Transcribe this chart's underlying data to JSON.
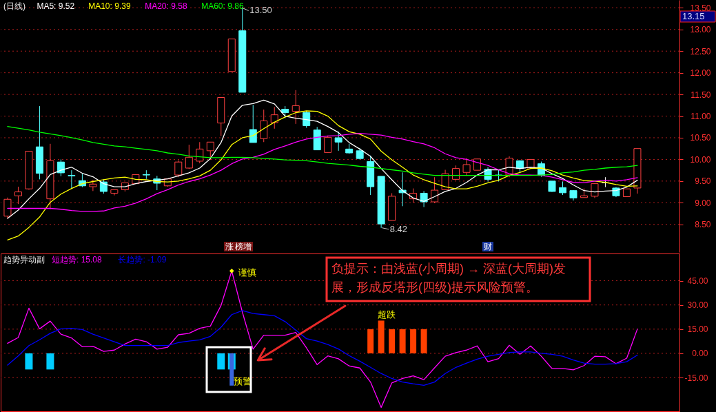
{
  "chart_data": [
    {
      "type": "candlestick",
      "title": "(日线)",
      "legend": "top left",
      "tick_labels": "y",
      "grid": "y",
      "categories": [
        null,
        null,
        null,
        null,
        null,
        null,
        null,
        null,
        null,
        null,
        null,
        null,
        null,
        null,
        null,
        null,
        null,
        null,
        null,
        null,
        null,
        null,
        null,
        null,
        null,
        null,
        null,
        null,
        null,
        null,
        null,
        null,
        null,
        null,
        null,
        null,
        null,
        null,
        null,
        null,
        null,
        null,
        null,
        null,
        null,
        null,
        null,
        null,
        null,
        null,
        null,
        null,
        null,
        null,
        null,
        null,
        null,
        null,
        null,
        null
      ],
      "ohlc": [
        [
          8.69,
          9.12,
          8.63,
          9.08
        ],
        [
          9.16,
          9.37,
          8.97,
          9.25
        ],
        [
          9.32,
          10.19,
          9.3,
          10.19
        ],
        [
          10.29,
          11.23,
          9.54,
          9.68
        ],
        [
          9.09,
          10.36,
          8.85,
          9.97
        ],
        [
          9.94,
          10.0,
          9.61,
          9.69
        ],
        [
          9.63,
          9.75,
          9.32,
          9.62
        ],
        [
          9.51,
          9.67,
          9.36,
          9.39
        ],
        [
          9.37,
          9.53,
          9.27,
          9.43
        ],
        [
          9.48,
          9.54,
          9.21,
          9.26
        ],
        [
          9.22,
          9.3,
          9.17,
          9.3
        ],
        [
          9.3,
          9.46,
          9.26,
          9.46
        ],
        [
          9.44,
          9.65,
          9.44,
          9.65
        ],
        [
          9.65,
          9.75,
          9.55,
          9.64
        ],
        [
          9.55,
          9.62,
          9.29,
          9.45
        ],
        [
          9.39,
          9.56,
          9.37,
          9.55
        ],
        [
          9.64,
          9.98,
          9.59,
          9.94
        ],
        [
          9.8,
          10.34,
          9.78,
          10.05
        ],
        [
          9.96,
          10.4,
          9.91,
          10.24
        ],
        [
          10.2,
          10.4,
          9.99,
          10.4
        ],
        [
          10.84,
          11.43,
          10.54,
          11.43
        ],
        [
          12.03,
          12.78,
          12.03,
          12.78
        ],
        [
          12.97,
          13.5,
          11.55,
          11.55
        ],
        [
          10.69,
          11.26,
          10.39,
          10.39
        ],
        [
          10.48,
          11.15,
          10.4,
          10.89
        ],
        [
          10.85,
          11.21,
          10.71,
          11.03
        ],
        [
          11.16,
          11.23,
          10.95,
          11.08
        ],
        [
          11.11,
          11.6,
          10.82,
          11.24
        ],
        [
          11.08,
          11.12,
          10.73,
          10.78
        ],
        [
          10.68,
          10.75,
          10.22,
          10.22
        ],
        [
          10.16,
          10.55,
          10.16,
          10.51
        ],
        [
          10.5,
          10.64,
          10.2,
          10.4
        ],
        [
          10.24,
          10.36,
          10.13,
          10.15
        ],
        [
          10.2,
          10.26,
          10.0,
          10.02
        ],
        [
          9.95,
          10.09,
          9.18,
          9.37
        ],
        [
          9.61,
          9.61,
          8.42,
          8.51
        ],
        [
          8.59,
          9.22,
          8.59,
          9.15
        ],
        [
          9.29,
          9.7,
          8.92,
          9.23
        ],
        [
          9.09,
          9.33,
          9.0,
          9.22
        ],
        [
          9.22,
          9.27,
          8.9,
          9.02
        ],
        [
          9.02,
          9.59,
          8.99,
          9.29
        ],
        [
          9.3,
          9.76,
          9.3,
          9.67
        ],
        [
          9.54,
          9.86,
          9.52,
          9.79
        ],
        [
          9.7,
          10.03,
          9.62,
          9.88
        ],
        [
          9.75,
          10.01,
          9.75,
          10.01
        ],
        [
          9.77,
          9.82,
          9.49,
          9.54
        ],
        [
          9.64,
          9.76,
          9.49,
          9.63
        ],
        [
          9.64,
          10.07,
          9.59,
          10.03
        ],
        [
          9.97,
          9.98,
          9.7,
          9.79
        ],
        [
          9.8,
          10.0,
          9.8,
          10.0
        ],
        [
          9.9,
          9.95,
          9.6,
          9.63
        ],
        [
          9.5,
          9.5,
          9.25,
          9.26
        ],
        [
          9.35,
          9.49,
          9.18,
          9.23
        ],
        [
          9.28,
          9.29,
          9.05,
          9.11
        ],
        [
          9.12,
          9.33,
          9.12,
          9.16
        ],
        [
          9.15,
          9.45,
          9.11,
          9.44
        ],
        [
          9.46,
          9.59,
          9.36,
          9.46
        ],
        [
          9.34,
          9.36,
          9.13,
          9.16
        ],
        [
          9.14,
          9.32,
          9.14,
          9.32
        ],
        [
          9.34,
          10.25,
          9.21,
          10.25
        ]
      ],
      "colors": [
        "#ff4040",
        "#ff4040",
        "#ff4040",
        "#54ffff",
        "#ff4040",
        "#54ffff",
        "#54ffff",
        "#54ffff",
        "#ff4040",
        "#54ffff",
        "#ff4040",
        "#ff4040",
        "#ff4040",
        "#54ffff",
        "#54ffff",
        "#ff4040",
        "#ff4040",
        "#ff4040",
        "#ff4040",
        "#ff4040",
        "#ff4040",
        "#ff4040",
        "#54ffff",
        "#54ffff",
        "#ff4040",
        "#ff4040",
        "#54ffff",
        "#ff4040",
        "#54ffff",
        "#54ffff",
        "#ff4040",
        "#54ffff",
        "#54ffff",
        "#54ffff",
        "#54ffff",
        "#54ffff",
        "#ff4040",
        "#54ffff",
        "#ff4040",
        "#54ffff",
        "#ff4040",
        "#ff4040",
        "#ff4040",
        "#ff4040",
        "#ff4040",
        "#54ffff",
        "#54ffff",
        "#ff4040",
        "#54ffff",
        "#ff4040",
        "#54ffff",
        "#54ffff",
        "#54ffff",
        "#54ffff",
        "#ff4040",
        "#ff4040",
        "#ffffff",
        "#54ffff",
        "#ff4040",
        "#ff4040"
      ],
      "series": [
        {
          "name": "MA5: 9.52",
          "type": "line",
          "color": "#ffffff",
          "values": [
            8.64,
            8.83,
            9.09,
            9.33,
            9.65,
            9.75,
            9.82,
            9.68,
            9.6,
            9.44,
            9.37,
            9.37,
            9.44,
            9.49,
            9.52,
            9.55,
            9.62,
            9.69,
            9.8,
            10.02,
            10.39,
            11.0,
            11.25,
            11.29,
            11.37,
            11.28,
            11.0,
            10.95,
            10.92,
            10.88,
            10.76,
            10.62,
            10.39,
            10.24,
            10.07,
            9.79,
            9.53,
            9.28,
            9.11,
            9.03,
            9.14,
            9.26,
            9.33,
            9.47,
            9.64,
            9.76,
            9.76,
            9.82,
            9.79,
            9.82,
            9.8,
            9.67,
            9.56,
            9.41,
            9.28,
            9.25,
            9.27,
            9.28,
            9.36,
            9.52
          ]
        },
        {
          "name": "MA10: 9.39",
          "type": "line",
          "color": "#ffff00",
          "values": [
            8.14,
            8.23,
            8.43,
            8.67,
            9.01,
            9.2,
            9.33,
            9.44,
            9.49,
            9.53,
            9.57,
            9.59,
            9.54,
            9.53,
            9.49,
            9.48,
            9.5,
            9.55,
            9.62,
            9.75,
            9.99,
            10.34,
            10.5,
            10.55,
            10.71,
            10.86,
            10.98,
            11.08,
            11.12,
            11.11,
            11.0,
            10.78,
            10.64,
            10.58,
            10.47,
            10.19,
            9.99,
            9.82,
            9.64,
            9.53,
            9.45,
            9.37,
            9.32,
            9.32,
            9.38,
            9.46,
            9.52,
            9.63,
            9.7,
            9.79,
            9.8,
            9.74,
            9.64,
            9.57,
            9.51,
            9.5,
            9.47,
            9.42,
            9.38,
            9.39
          ]
        },
        {
          "name": "MA20: 9.58",
          "type": "line",
          "color": "#ff00ff",
          "values": [
            8.87,
            8.87,
            8.87,
            8.87,
            8.87,
            8.85,
            8.82,
            8.8,
            8.8,
            8.81,
            8.88,
            8.92,
            8.99,
            9.09,
            9.21,
            9.3,
            9.41,
            9.49,
            9.55,
            9.64,
            9.75,
            9.9,
            10.01,
            10.05,
            10.12,
            10.23,
            10.31,
            10.4,
            10.47,
            10.51,
            10.54,
            10.55,
            10.58,
            10.6,
            10.58,
            10.56,
            10.51,
            10.47,
            10.41,
            10.36,
            10.27,
            10.13,
            10.04,
            10.0,
            9.93,
            9.86,
            9.76,
            9.67,
            9.64,
            9.64,
            9.63,
            9.59,
            9.53,
            9.47,
            9.46,
            9.5,
            9.52,
            9.5,
            9.53,
            9.58
          ]
        },
        {
          "name": "MA60: 9.86",
          "type": "line",
          "color": "#00ff00",
          "values": [
            10.76,
            10.72,
            10.68,
            10.63,
            10.59,
            10.55,
            10.5,
            10.45,
            10.39,
            10.35,
            10.31,
            10.29,
            10.26,
            10.23,
            10.2,
            10.15,
            10.12,
            10.08,
            10.06,
            10.04,
            10.04,
            10.05,
            10.05,
            10.04,
            10.02,
            10.01,
            9.99,
            9.98,
            9.97,
            9.94,
            9.91,
            9.89,
            9.87,
            9.84,
            9.82,
            9.79,
            9.76,
            9.73,
            9.69,
            9.66,
            9.63,
            9.63,
            9.63,
            9.63,
            9.63,
            9.63,
            9.63,
            9.63,
            9.63,
            9.63,
            9.64,
            9.65,
            9.69,
            9.71,
            9.75,
            9.77,
            9.8,
            9.82,
            9.83,
            9.86
          ]
        }
      ],
      "ylim": [
        7.86,
        13.68
      ],
      "yticks": [
        {
          "value": 8.5,
          "label": "8.50"
        },
        {
          "value": 9,
          "label": "9.00"
        },
        {
          "value": 9.5,
          "label": "9.50"
        },
        {
          "value": 10,
          "label": "10.00"
        },
        {
          "value": 10.5,
          "label": "10.50"
        },
        {
          "value": 11,
          "label": "11.00"
        },
        {
          "value": 11.5,
          "label": "11.50"
        },
        {
          "value": 12,
          "label": "12.00"
        },
        {
          "value": 12.5,
          "label": "12.50"
        },
        {
          "value": 13,
          "label": "13.00"
        },
        {
          "value": 13.5,
          "label": "13.50"
        }
      ],
      "annotations": [
        "13.50",
        "8.42",
        "13.15",
        "涨",
        "榜增",
        "财"
      ]
    },
    {
      "type": "line",
      "title": "趋势异动副",
      "legend": "top left",
      "tick_labels": "y",
      "grid": "y",
      "categories": [
        null,
        null,
        null,
        null,
        null,
        null,
        null,
        null,
        null,
        null,
        null,
        null,
        null,
        null,
        null,
        null,
        null,
        null,
        null,
        null,
        null,
        null,
        null,
        null,
        null,
        null,
        null,
        null,
        null,
        null,
        null,
        null,
        null,
        null,
        null,
        null,
        null,
        null,
        null,
        null,
        null,
        null,
        null,
        null,
        null,
        null,
        null,
        null,
        null,
        null,
        null,
        null,
        null,
        null,
        null,
        null,
        null,
        null,
        null,
        null
      ],
      "series": [
        {
          "type": "bar",
          "color": "#00ccff",
          "values": [
            null,
            null,
            -10,
            null,
            -10,
            null,
            null,
            null,
            null,
            null,
            null,
            null,
            null,
            null,
            null,
            null,
            null,
            null,
            null,
            null,
            -10,
            -10,
            null,
            null,
            null,
            null,
            null,
            null,
            null,
            null,
            null,
            null,
            null,
            null,
            null,
            null,
            null,
            null,
            null,
            null,
            null,
            null,
            null,
            null,
            null,
            null,
            null,
            null,
            null,
            null,
            null,
            null,
            null,
            null,
            null,
            null,
            null,
            null,
            null,
            null
          ]
        },
        {
          "type": "bar",
          "color": "#3a66e0",
          "values": [
            null,
            null,
            null,
            null,
            null,
            null,
            null,
            null,
            null,
            null,
            null,
            null,
            null,
            null,
            null,
            null,
            null,
            null,
            null,
            null,
            null,
            -20,
            null,
            null,
            null,
            null,
            null,
            null,
            null,
            null,
            null,
            null,
            null,
            null,
            null,
            null,
            null,
            null,
            null,
            null,
            null,
            null,
            null,
            null,
            null,
            null,
            null,
            null,
            null,
            null,
            null,
            null,
            null,
            null,
            null,
            null,
            null,
            null,
            null,
            null
          ]
        },
        {
          "type": "bar",
          "color": "#ff4000",
          "values": [
            null,
            null,
            null,
            null,
            null,
            null,
            null,
            null,
            null,
            null,
            null,
            null,
            null,
            null,
            null,
            null,
            null,
            null,
            null,
            null,
            null,
            null,
            null,
            null,
            null,
            null,
            null,
            null,
            null,
            null,
            null,
            null,
            null,
            null,
            15,
            20.3,
            15,
            15,
            15,
            15,
            null,
            null,
            null,
            null,
            null,
            null,
            null,
            null,
            null,
            null,
            null,
            null,
            null,
            null,
            null,
            null,
            null,
            null,
            null,
            null
          ]
        },
        {
          "name": "短趋势: 15.08",
          "type": "line",
          "color": "#ff00ff",
          "values": [
            6.2,
            9.8,
            28.0,
            15.2,
            20.0,
            11.9,
            9.5,
            4.1,
            4.4,
            1.2,
            2.0,
            5.8,
            8.8,
            7.2,
            2.6,
            3.8,
            11.5,
            12.4,
            15.5,
            16.9,
            29.7,
            51.1,
            25.5,
            2.6,
            11.2,
            11.2,
            11.2,
            12.9,
            3.4,
            -7.0,
            -1.6,
            -3.4,
            -7.8,
            -9.1,
            -17.8,
            -33.5,
            -18.3,
            -15.6,
            -14.0,
            -16.3,
            -9.0,
            -1.8,
            0.5,
            2.0,
            4.6,
            -5.2,
            -3.3,
            5.0,
            -0.6,
            4.6,
            -1.8,
            -9.4,
            -9.4,
            -10.2,
            -7.6,
            -1.8,
            -2.1,
            -6.4,
            -3.0,
            15.08
          ]
        },
        {
          "name": "长趋势: -1.09",
          "type": "line",
          "color": "#0000ff",
          "values": [
            -7.3,
            -1.6,
            4.8,
            8.4,
            12.4,
            15.2,
            15.5,
            14.8,
            11.9,
            9.5,
            7.2,
            4.8,
            4.8,
            4.8,
            4.8,
            4.8,
            6.7,
            7.6,
            8.4,
            10.5,
            16.2,
            24.0,
            26.5,
            24.7,
            24.0,
            23.3,
            19.7,
            14.4,
            9.1,
            7.6,
            5.5,
            2.7,
            -1.4,
            -4.9,
            -8.7,
            -12.5,
            -15.6,
            -17.8,
            -18.9,
            -19.8,
            -17.8,
            -12.5,
            -8.7,
            -6.1,
            -3.6,
            -1.8,
            -0.6,
            0.5,
            0.9,
            0.9,
            0,
            -0.6,
            -1.8,
            -4.1,
            -6.1,
            -6.7,
            -6.7,
            -6.4,
            -5.2,
            -1.09
          ]
        },
        {
          "type": "scatter",
          "marker": "diamond",
          "color": "#ffff00",
          "values": [
            null,
            null,
            null,
            null,
            null,
            null,
            null,
            null,
            null,
            null,
            null,
            null,
            null,
            null,
            null,
            null,
            null,
            null,
            null,
            null,
            null,
            51.1,
            null,
            null,
            null,
            null,
            null,
            null,
            null,
            null,
            null,
            null,
            null,
            null,
            null,
            null,
            null,
            null,
            null,
            null,
            null,
            null,
            null,
            null,
            null,
            null,
            null,
            null,
            null,
            null,
            null,
            null,
            null,
            null,
            null,
            null,
            null,
            null,
            null,
            null
          ]
        }
      ],
      "ylim": [
        -35.9,
        61.9
      ],
      "yticks": [
        {
          "value": -15,
          "label": "-15.00"
        },
        {
          "value": 0,
          "label": "0.00"
        },
        {
          "value": 15,
          "label": "15.00"
        },
        {
          "value": 30,
          "label": "30.00"
        },
        {
          "value": 45,
          "label": "45.00"
        }
      ],
      "annotations": [
        "谨慎",
        "超跌",
        "预警",
        "负提示：由浅蓝(小周期) → 深蓝(大周期)发展，形成反塔形(四级)提示风险预警。"
      ]
    }
  ]
}
